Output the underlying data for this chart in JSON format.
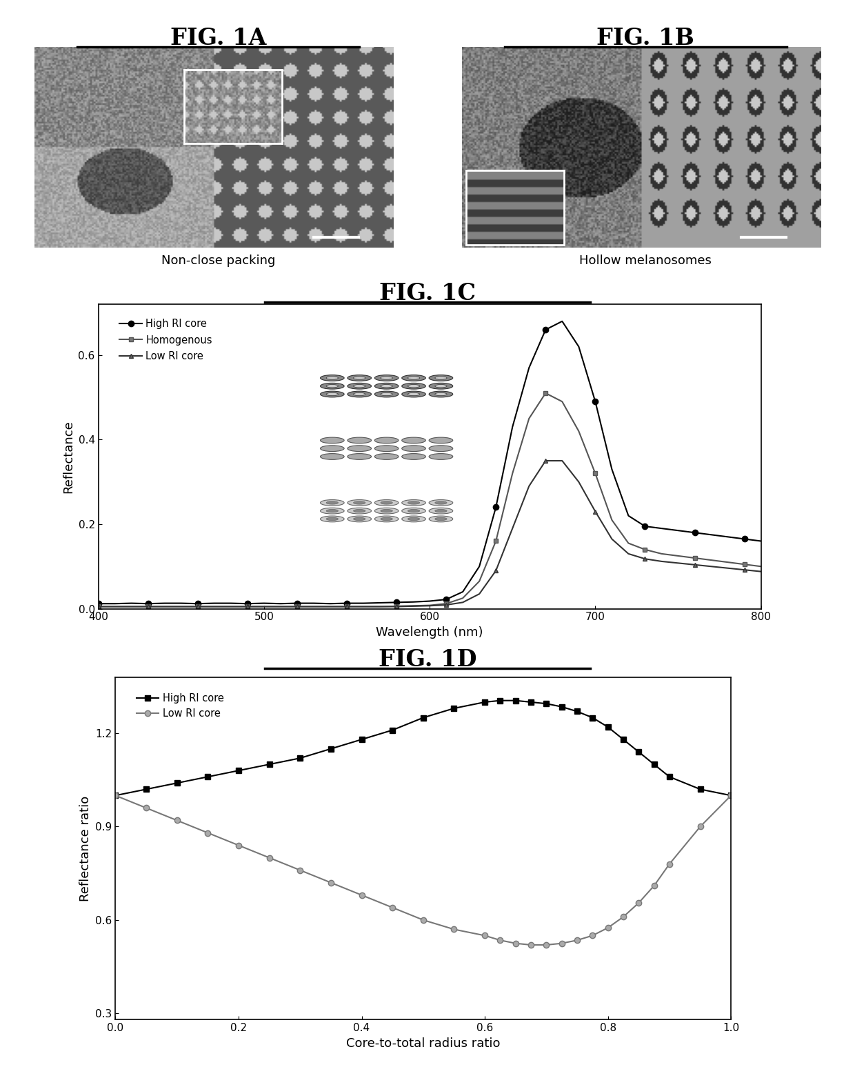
{
  "fig1A_title": "FIG. 1A",
  "fig1B_title": "FIG. 1B",
  "fig1C_title": "FIG. 1C",
  "fig1D_title": "FIG. 1D",
  "fig1A_caption": "Non-close packing",
  "fig1B_caption": "Hollow melanosomes",
  "wavelengths": [
    400,
    410,
    420,
    430,
    440,
    450,
    460,
    470,
    480,
    490,
    500,
    510,
    520,
    530,
    540,
    550,
    560,
    570,
    580,
    590,
    600,
    610,
    620,
    630,
    640,
    650,
    660,
    670,
    680,
    690,
    700,
    710,
    720,
    730,
    740,
    750,
    760,
    770,
    780,
    790,
    800
  ],
  "high_ri_core": [
    0.012,
    0.012,
    0.013,
    0.012,
    0.013,
    0.013,
    0.012,
    0.013,
    0.013,
    0.012,
    0.013,
    0.012,
    0.013,
    0.013,
    0.012,
    0.013,
    0.013,
    0.014,
    0.015,
    0.016,
    0.018,
    0.022,
    0.04,
    0.1,
    0.24,
    0.43,
    0.57,
    0.66,
    0.68,
    0.62,
    0.49,
    0.33,
    0.22,
    0.195,
    0.19,
    0.185,
    0.18,
    0.175,
    0.17,
    0.165,
    0.16
  ],
  "homogenous": [
    0.005,
    0.005,
    0.005,
    0.005,
    0.005,
    0.005,
    0.005,
    0.005,
    0.005,
    0.005,
    0.005,
    0.005,
    0.005,
    0.005,
    0.005,
    0.005,
    0.005,
    0.005,
    0.006,
    0.007,
    0.008,
    0.012,
    0.025,
    0.065,
    0.16,
    0.32,
    0.45,
    0.51,
    0.49,
    0.42,
    0.32,
    0.21,
    0.155,
    0.14,
    0.13,
    0.125,
    0.12,
    0.115,
    0.11,
    0.105,
    0.1
  ],
  "low_ri_core": [
    0.005,
    0.005,
    0.005,
    0.005,
    0.005,
    0.005,
    0.005,
    0.005,
    0.005,
    0.005,
    0.005,
    0.005,
    0.005,
    0.005,
    0.005,
    0.005,
    0.005,
    0.005,
    0.005,
    0.006,
    0.007,
    0.009,
    0.015,
    0.035,
    0.09,
    0.19,
    0.29,
    0.35,
    0.35,
    0.3,
    0.23,
    0.165,
    0.13,
    0.118,
    0.112,
    0.108,
    0.104,
    0.1,
    0.096,
    0.092,
    0.088
  ],
  "radius_ratio": [
    0.0,
    0.05,
    0.1,
    0.15,
    0.2,
    0.25,
    0.3,
    0.35,
    0.4,
    0.45,
    0.5,
    0.55,
    0.6,
    0.625,
    0.65,
    0.675,
    0.7,
    0.725,
    0.75,
    0.775,
    0.8,
    0.825,
    0.85,
    0.875,
    0.9,
    0.95,
    1.0
  ],
  "high_ri_ratio": [
    1.0,
    1.02,
    1.04,
    1.06,
    1.08,
    1.1,
    1.12,
    1.15,
    1.18,
    1.21,
    1.25,
    1.28,
    1.3,
    1.305,
    1.305,
    1.3,
    1.295,
    1.285,
    1.27,
    1.25,
    1.22,
    1.18,
    1.14,
    1.1,
    1.06,
    1.02,
    1.0
  ],
  "low_ri_ratio": [
    1.0,
    0.96,
    0.92,
    0.88,
    0.84,
    0.8,
    0.76,
    0.72,
    0.68,
    0.64,
    0.6,
    0.57,
    0.55,
    0.535,
    0.525,
    0.52,
    0.52,
    0.525,
    0.535,
    0.55,
    0.575,
    0.61,
    0.655,
    0.71,
    0.78,
    0.9,
    1.0
  ],
  "xlim_c": [
    400,
    800
  ],
  "ylim_c": [
    0.0,
    0.72
  ],
  "yticks_c": [
    0.0,
    0.2,
    0.4,
    0.6
  ],
  "xlim_d": [
    0.0,
    1.0
  ],
  "ylim_d": [
    0.28,
    1.38
  ],
  "yticks_d": [
    0.3,
    0.6,
    0.9,
    1.2
  ],
  "background_color": "#ffffff"
}
